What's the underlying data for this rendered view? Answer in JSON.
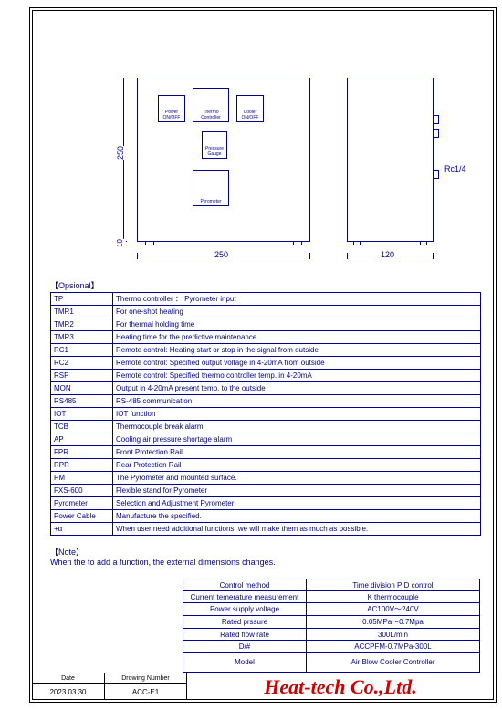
{
  "drawing": {
    "dim_h_front": "250",
    "dim_h_side": "120",
    "dim_v_height": "250",
    "dim_v_gap": "10",
    "rc_label": "Rc1/4",
    "panels": {
      "power": "Power\nON/OFF",
      "thermo": "Thermo\nController",
      "cooler": "Cooler\nON/OFF",
      "pressure": "Pressure\nGauge",
      "pyrometer": "Pyrometer"
    }
  },
  "optional": {
    "title": "【Opsional】",
    "rows": [
      [
        "TP",
        "Thermo controller ： Pyrometer input"
      ],
      [
        "TMR1",
        "For one-shot heating"
      ],
      [
        "TMR2",
        "For thermal holding time"
      ],
      [
        "TMR3",
        "Heating time for the predictive maintenance"
      ],
      [
        "RC1",
        "Remote control: Heating start or stop in the signal from outside"
      ],
      [
        "RC2",
        "Remote control: Specified output voltage in 4-20mA from outside"
      ],
      [
        "RSP",
        "Remote control: Specified thermo controller temp. in 4-20mA"
      ],
      [
        "MON",
        "Output in 4-20mA present temp. to the outside"
      ],
      [
        "RS485",
        "RS-485 communication"
      ],
      [
        "IOT",
        "IOT function"
      ],
      [
        "TCB",
        "Thermocouple break alarm"
      ],
      [
        "AP",
        "Cooling air pressure shortage alarm"
      ],
      [
        "FPR",
        "Front Protection Rail"
      ],
      [
        "RPR",
        "Rear Protection Rail"
      ],
      [
        "PM",
        "The Pyrometer and mounted surface."
      ],
      [
        "FXS-600",
        "Flexible stand for Pyrometer"
      ],
      [
        "Pyrometer",
        "Selection and Adjustment Pyrometer"
      ],
      [
        "Power Cable",
        "Manufacture the specified."
      ],
      [
        "+α",
        "When user need additional functions, we will make them as much as possible."
      ]
    ]
  },
  "note": {
    "title": "【Note】",
    "body": "When the to add a function, the external dimensions changes."
  },
  "spec": {
    "rows": [
      [
        "Control method",
        "Time division PID control"
      ],
      [
        "Current temerature measurement",
        "K thermocouple"
      ],
      [
        "Power supply voltage",
        "AC100V～240V"
      ],
      [
        "Rated prssure",
        "0.05MPa～0.7Mpa"
      ],
      [
        "Rated flow rate",
        "300L/min"
      ],
      [
        "D/#",
        "ACCPFM-0.7MPa-300L"
      ],
      [
        "Model",
        "Air Blow Cooler Controller"
      ]
    ]
  },
  "titleblock": {
    "date_label": "Date",
    "date_value": "2023.03.30",
    "drawing_label": "Drowing Number",
    "drawing_value": "ACC-E1",
    "company": "Heat-tech Co.,Ltd."
  },
  "colors": {
    "line": "#00008b",
    "company": "#d00000"
  }
}
